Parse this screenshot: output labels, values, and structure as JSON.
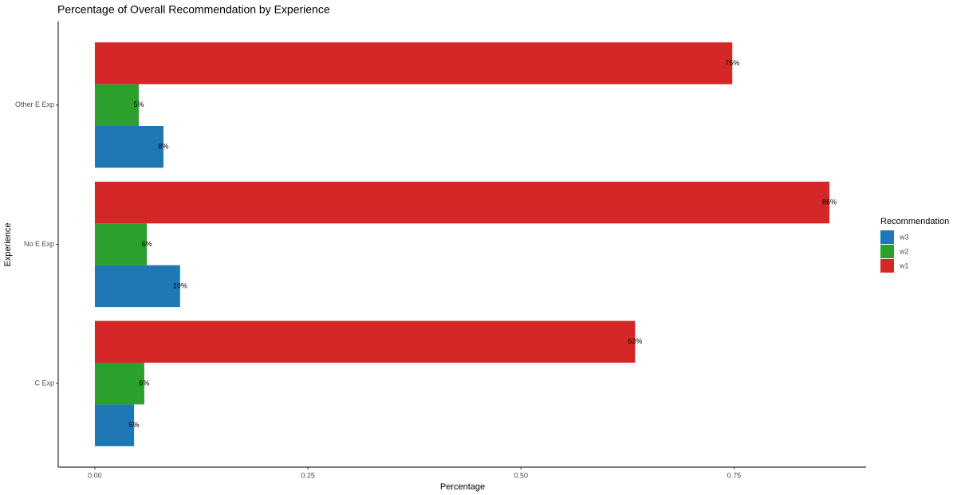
{
  "chart_data": {
    "type": "hbar",
    "title": "Percentage of Overall Recommendation by Experience",
    "x_label": "Percentage",
    "y_label": "Experience",
    "legend_title": "Recommendation",
    "categories": [
      "Other E Exp",
      "No E Exp",
      "C Exp"
    ],
    "series": [
      {
        "name": "w3",
        "color": "#1f77b4",
        "values": [
          0.0805,
          0.1,
          0.046
        ],
        "value_labels": [
          "8%",
          "10%",
          "5%"
        ]
      },
      {
        "name": "w2",
        "color": "#2ca02c",
        "values": [
          0.0515,
          0.061,
          0.058
        ],
        "value_labels": [
          "5%",
          "6%",
          "6%"
        ]
      },
      {
        "name": "w1",
        "color": "#d62728",
        "values": [
          0.748,
          0.862,
          0.634
        ],
        "value_labels": [
          "75%",
          "86%",
          "63%"
        ]
      }
    ],
    "xlim": [
      -0.043,
      0.905
    ],
    "xticks": [
      {
        "value": 0,
        "label": "0.00"
      },
      0.25,
      {
        "value": 0.5,
        "label": "0.50"
      },
      0.75
    ],
    "grid": false
  }
}
